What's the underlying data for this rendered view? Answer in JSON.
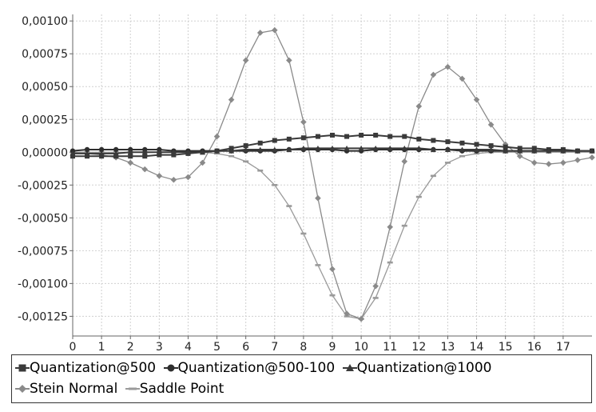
{
  "chart_data": {
    "type": "line",
    "title": "",
    "xlabel": "",
    "ylabel": "",
    "xlim": [
      0,
      18
    ],
    "ylim": [
      -0.0014,
      0.00105
    ],
    "x_ticks": [
      0,
      1,
      2,
      3,
      4,
      5,
      6,
      7,
      8,
      9,
      10,
      11,
      12,
      13,
      14,
      15,
      16,
      17
    ],
    "x_tick_labels": [
      "0",
      "1",
      "2",
      "3",
      "4",
      "5",
      "6",
      "7",
      "8",
      "9",
      "10",
      "11",
      "12",
      "13",
      "14",
      "15",
      "16",
      "17"
    ],
    "y_ticks": [
      -0.00125,
      -0.001,
      -0.00075,
      -0.0005,
      -0.00025,
      0,
      0.00025,
      0.0005,
      0.00075,
      0.001
    ],
    "y_tick_labels": [
      "-0,00125",
      "-0,00100",
      "-0,00075",
      "-0,00050",
      "-0,00025",
      "0,00000",
      "0,00025",
      "0,00050",
      "0,00075",
      "0,00100"
    ],
    "grid": true,
    "legend_position": "bottom",
    "series": [
      {
        "name": "Quantization@500",
        "marker": "square",
        "color": "#3a3a3a",
        "x": [
          0,
          0.5,
          1,
          1.5,
          2,
          2.5,
          3,
          3.5,
          4,
          4.5,
          5,
          5.5,
          6,
          6.5,
          7,
          7.5,
          8,
          8.5,
          9,
          9.5,
          10,
          10.5,
          11,
          11.5,
          12,
          12.5,
          13,
          13.5,
          14,
          14.5,
          15,
          15.5,
          16,
          16.5,
          17,
          17.5,
          18
        ],
        "y": [
          -3e-05,
          -3e-05,
          -3e-05,
          -3e-05,
          -3e-05,
          -3e-05,
          -2e-05,
          -2e-05,
          -1e-05,
          0,
          1e-05,
          3e-05,
          5e-05,
          7e-05,
          9e-05,
          0.0001,
          0.00011,
          0.00012,
          0.00013,
          0.00012,
          0.00013,
          0.00013,
          0.00012,
          0.00012,
          0.0001,
          9e-05,
          8e-05,
          7e-05,
          6e-05,
          5e-05,
          4e-05,
          3e-05,
          3e-05,
          2e-05,
          2e-05,
          1e-05,
          1e-05
        ]
      },
      {
        "name": "Quantization@500-100",
        "marker": "circle",
        "color": "#2e2e2e",
        "x": [
          0,
          0.5,
          1,
          1.5,
          2,
          2.5,
          3,
          3.5,
          4,
          4.5,
          5,
          5.5,
          6,
          6.5,
          7,
          7.5,
          8,
          8.5,
          9,
          9.5,
          10,
          10.5,
          11,
          11.5,
          12,
          12.5,
          13,
          13.5,
          14,
          14.5,
          15,
          15.5,
          16,
          16.5,
          17,
          17.5,
          18
        ],
        "y": [
          1e-05,
          2e-05,
          2e-05,
          2e-05,
          2e-05,
          2e-05,
          2e-05,
          1e-05,
          1e-05,
          1e-05,
          1e-05,
          1e-05,
          1e-05,
          1e-05,
          1e-05,
          2e-05,
          2e-05,
          2e-05,
          2e-05,
          1e-05,
          1e-05,
          2e-05,
          2e-05,
          2e-05,
          2e-05,
          2e-05,
          2e-05,
          1e-05,
          1e-05,
          1e-05,
          1e-05,
          1e-05,
          1e-05,
          1e-05,
          1e-05,
          1e-05,
          1e-05
        ]
      },
      {
        "name": "Quantization@1000",
        "marker": "triangle",
        "color": "#3a3a3a",
        "x": [
          0,
          0.5,
          1,
          1.5,
          2,
          2.5,
          3,
          3.5,
          4,
          4.5,
          5,
          5.5,
          6,
          6.5,
          7,
          7.5,
          8,
          8.5,
          9,
          9.5,
          10,
          10.5,
          11,
          11.5,
          12,
          12.5,
          13,
          13.5,
          14,
          14.5,
          15,
          15.5,
          16,
          16.5,
          17,
          17.5,
          18
        ],
        "y": [
          -1e-05,
          -1e-05,
          -1e-05,
          -1e-05,
          0,
          0,
          0,
          0,
          0,
          0,
          1e-05,
          1e-05,
          2e-05,
          2e-05,
          2e-05,
          2e-05,
          3e-05,
          3e-05,
          3e-05,
          3e-05,
          3e-05,
          3e-05,
          3e-05,
          3e-05,
          3e-05,
          2e-05,
          2e-05,
          2e-05,
          2e-05,
          2e-05,
          1e-05,
          1e-05,
          1e-05,
          1e-05,
          1e-05,
          1e-05,
          1e-05
        ]
      },
      {
        "name": "Stein Normal",
        "marker": "diamond",
        "color": "#8a8a8a",
        "x": [
          0,
          0.5,
          1,
          1.5,
          2,
          2.5,
          3,
          3.5,
          4,
          4.5,
          5,
          5.5,
          6,
          6.5,
          7,
          7.5,
          8,
          8.5,
          9,
          9.5,
          10,
          10.5,
          11,
          11.5,
          12,
          12.5,
          13,
          13.5,
          14,
          14.5,
          15,
          15.5,
          16,
          16.5,
          17,
          17.5,
          18
        ],
        "y": [
          0,
          -1e-05,
          -2e-05,
          -4e-05,
          -8e-05,
          -0.00013,
          -0.00018,
          -0.00021,
          -0.00019,
          -8e-05,
          0.00012,
          0.0004,
          0.0007,
          0.00091,
          0.00093,
          0.0007,
          0.00023,
          -0.00035,
          -0.00089,
          -0.00123,
          -0.00127,
          -0.00102,
          -0.00057,
          -7e-05,
          0.00035,
          0.00059,
          0.00065,
          0.00056,
          0.0004,
          0.00021,
          6e-05,
          -3e-05,
          -8e-05,
          -9e-05,
          -8e-05,
          -6e-05,
          -4e-05
        ]
      },
      {
        "name": "Saddle Point",
        "marker": "dash",
        "color": "#9a9a9a",
        "x": [
          0,
          0.5,
          1,
          1.5,
          2,
          2.5,
          3,
          3.5,
          4,
          4.5,
          5,
          5.5,
          6,
          6.5,
          7,
          7.5,
          8,
          8.5,
          9,
          9.5,
          10,
          10.5,
          11,
          11.5,
          12,
          12.5,
          13,
          13.5,
          14,
          14.5,
          15,
          15.5,
          16,
          16.5,
          17,
          17.5,
          18
        ],
        "y": [
          0,
          0,
          0,
          0,
          0,
          0,
          0,
          0,
          0,
          0,
          -1e-05,
          -3e-05,
          -7e-05,
          -0.00014,
          -0.00025,
          -0.00041,
          -0.00062,
          -0.00086,
          -0.00109,
          -0.00125,
          -0.00127,
          -0.00111,
          -0.00084,
          -0.00056,
          -0.00034,
          -0.00018,
          -8e-05,
          -3e-05,
          -1e-05,
          0,
          0,
          0,
          0,
          0,
          0,
          0,
          0
        ]
      }
    ]
  }
}
